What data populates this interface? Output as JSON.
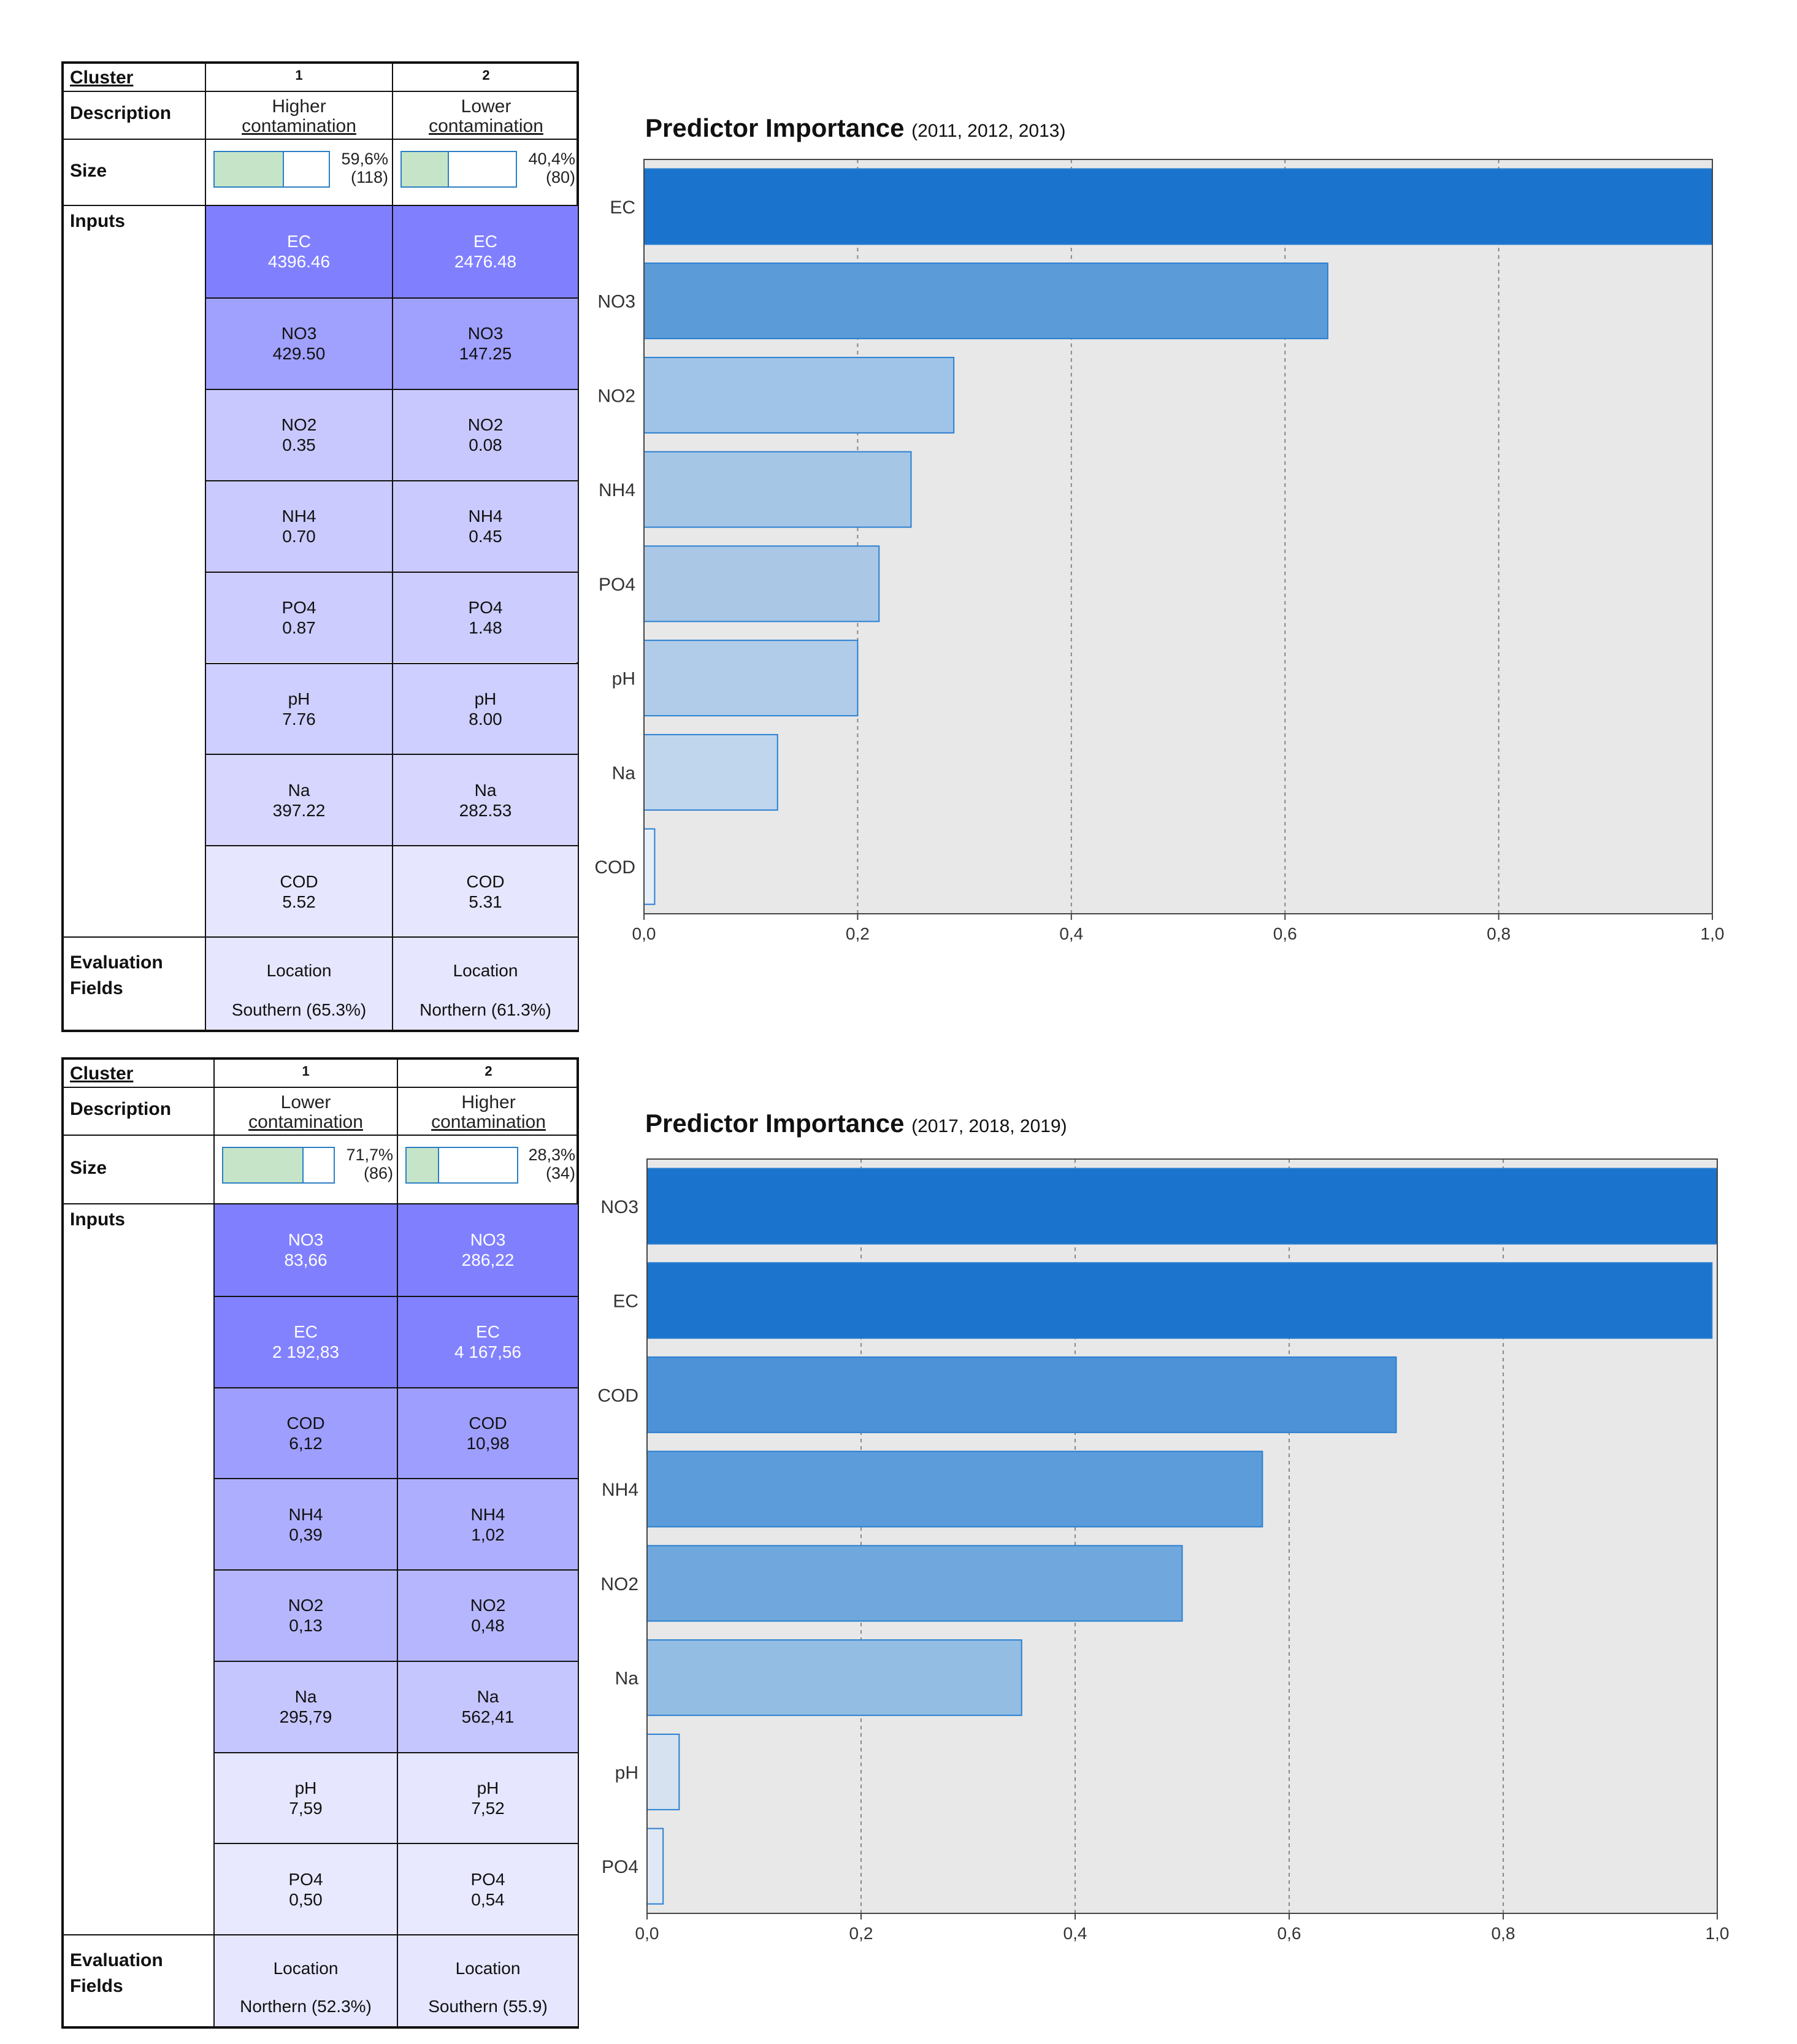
{
  "panels": [
    {
      "header": {
        "cluster_label": "Cluster",
        "clusters": [
          "1",
          "2"
        ]
      },
      "description": {
        "label": "Description",
        "values": [
          [
            "Higher",
            "contamination"
          ],
          [
            "Lower",
            "contamination"
          ]
        ]
      },
      "size": {
        "label": "Size",
        "values": [
          {
            "pct": "59,6%",
            "n": "(118)",
            "fraction": 0.596
          },
          {
            "pct": "40,4%",
            "n": "(80)",
            "fraction": 0.404
          }
        ]
      },
      "inputs": {
        "label": "Inputs",
        "rows": [
          {
            "name": "EC",
            "c1": "4396.46",
            "c2": "2476.48",
            "color": "#8080ff",
            "text_color": "#ffffff"
          },
          {
            "name": "NO3",
            "c1": "429.50",
            "c2": "147.25",
            "color": "#a0a0ff",
            "text_color": "#111111"
          },
          {
            "name": "NO2",
            "c1": "0.35",
            "c2": "0.08",
            "color": "#c8c8ff",
            "text_color": "#111111"
          },
          {
            "name": "NH4",
            "c1": "0.70",
            "c2": "0.45",
            "color": "#cacaff",
            "text_color": "#111111"
          },
          {
            "name": "PO4",
            "c1": "0.87",
            "c2": "1.48",
            "color": "#ccccff",
            "text_color": "#111111"
          },
          {
            "name": "pH",
            "c1": "7.76",
            "c2": "8.00",
            "color": "#ceceff",
            "text_color": "#111111"
          },
          {
            "name": "Na",
            "c1": "397.22",
            "c2": "282.53",
            "color": "#d6d6ff",
            "text_color": "#111111"
          },
          {
            "name": "COD",
            "c1": "5.52",
            "c2": "5.31",
            "color": "#e6e6ff",
            "text_color": "#111111"
          }
        ]
      },
      "evaluation": {
        "label": [
          "Evaluation",
          "Fields"
        ],
        "values": [
          {
            "field": "Location",
            "value": "Southern (65.3%)"
          },
          {
            "field": "Location",
            "value": "Northern (61.3%)"
          }
        ],
        "color": "#e6e6ff"
      }
    },
    {
      "header": {
        "cluster_label": "Cluster",
        "clusters": [
          "1",
          "2"
        ]
      },
      "description": {
        "label": "Description",
        "values": [
          [
            "Lower",
            "contamination"
          ],
          [
            "Higher",
            "contamination"
          ]
        ]
      },
      "size": {
        "label": "Size",
        "values": [
          {
            "pct": "71,7%",
            "n": "(86)",
            "fraction": 0.717
          },
          {
            "pct": "28,3%",
            "n": "(34)",
            "fraction": 0.283
          }
        ]
      },
      "inputs": {
        "label": "Inputs",
        "rows": [
          {
            "name": "NO3",
            "c1": "83,66",
            "c2": "286,22",
            "color": "#8080ff",
            "text_color": "#ffffff"
          },
          {
            "name": "EC",
            "c1": "2 192,83",
            "c2": "4 167,56",
            "color": "#8282ff",
            "text_color": "#ffffff"
          },
          {
            "name": "COD",
            "c1": "6,12",
            "c2": "10,98",
            "color": "#9e9eff",
            "text_color": "#111111"
          },
          {
            "name": "NH4",
            "c1": "0,39",
            "c2": "1,02",
            "color": "#aeaeff",
            "text_color": "#111111"
          },
          {
            "name": "NO2",
            "c1": "0,13",
            "c2": "0,48",
            "color": "#b6b6ff",
            "text_color": "#111111"
          },
          {
            "name": "Na",
            "c1": "295,79",
            "c2": "562,41",
            "color": "#c6c6ff",
            "text_color": "#111111"
          },
          {
            "name": "pH",
            "c1": "7,59",
            "c2": "7,52",
            "color": "#e6e6ff",
            "text_color": "#111111"
          },
          {
            "name": "PO4",
            "c1": "0,50",
            "c2": "0,54",
            "color": "#e8e8ff",
            "text_color": "#111111"
          }
        ]
      },
      "evaluation": {
        "label": [
          "Evaluation",
          "Fields"
        ],
        "values": [
          {
            "field": "Location",
            "value": "Northern (52.3%)"
          },
          {
            "field": "Location",
            "value": "Southern (55.9)"
          }
        ],
        "color": "#e6e6ff"
      }
    }
  ],
  "chart_data": [
    {
      "type": "bar",
      "orientation": "horizontal",
      "title": "Predictor Importance",
      "subtitle": "(2011, 2012, 2013)",
      "categories": [
        "EC",
        "NO3",
        "NO2",
        "NH4",
        "PO4",
        "pH",
        "Na",
        "COD"
      ],
      "values": [
        1.0,
        0.64,
        0.29,
        0.25,
        0.22,
        0.2,
        0.125,
        0.01
      ],
      "bar_colors": [
        "#1a73cc",
        "#5b9bd8",
        "#a0c4e8",
        "#a6c6e6",
        "#aac8e6",
        "#b0cce8",
        "#c0d6ec",
        "#e6eef8"
      ],
      "xlim": [
        0,
        1
      ],
      "xticks": [
        "0,0",
        "0,2",
        "0,4",
        "0,6",
        "0,8",
        "1,0"
      ],
      "grid": true
    },
    {
      "type": "bar",
      "orientation": "horizontal",
      "title": "Predictor Importance",
      "subtitle": "(2017, 2018, 2019)",
      "categories": [
        "NO3",
        "EC",
        "COD",
        "NH4",
        "NO2",
        "Na",
        "pH",
        "PO4"
      ],
      "values": [
        1.0,
        0.995,
        0.7,
        0.575,
        0.5,
        0.35,
        0.03,
        0.015
      ],
      "bar_colors": [
        "#1a73cc",
        "#1c74cc",
        "#4d92d6",
        "#5c9cda",
        "#70a8dd",
        "#93bde3",
        "#d6e2f0",
        "#dfe8f4"
      ],
      "xlim": [
        0,
        1
      ],
      "xticks": [
        "0,0",
        "0,2",
        "0,4",
        "0,6",
        "0,8",
        "1,0"
      ],
      "grid": true
    }
  ]
}
